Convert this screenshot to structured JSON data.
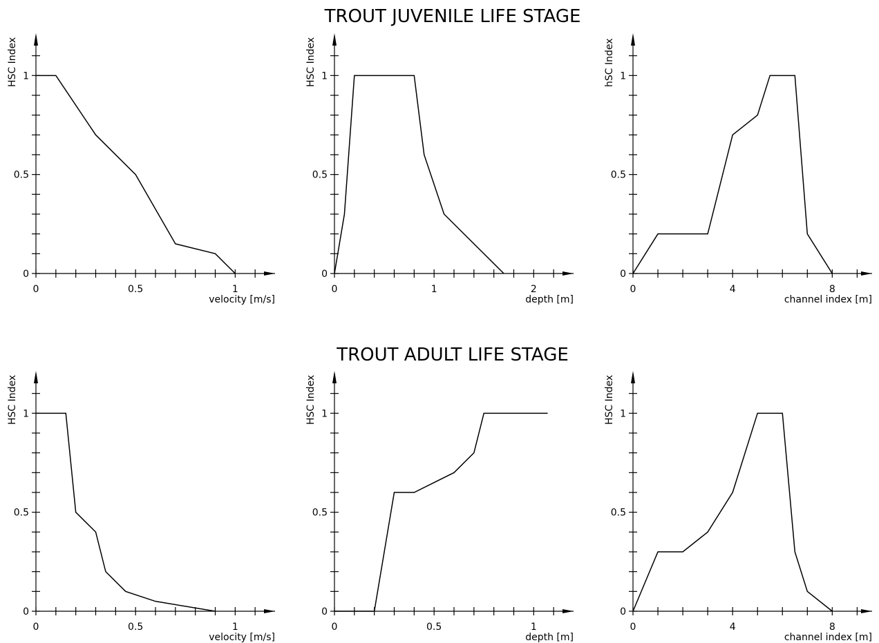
{
  "headings": [
    "TROUT JUVENILE LIFE STAGE",
    "TROUT ADULT LIFE STAGE"
  ],
  "chart_data": [
    {
      "type": "line",
      "color": "#000000",
      "ylabel": "HSC Index",
      "xlabel": "velocity [m/s]",
      "x": [
        0,
        0.1,
        0.3,
        0.5,
        0.7,
        0.9,
        1
      ],
      "values": [
        1,
        1,
        0.7,
        0.5,
        0.15,
        0.1,
        0
      ],
      "xlim": [
        0,
        1.2
      ],
      "ylim": [
        0,
        1.2
      ],
      "xticks": [
        0,
        0.5,
        1
      ],
      "yticks": [
        0,
        0.5,
        1
      ],
      "xminorticks": [
        0,
        0.1,
        0.2,
        0.3,
        0.4,
        0.5,
        0.6,
        0.7,
        0.8,
        0.9,
        1,
        1.1
      ],
      "yminorticks": [
        0,
        0.1,
        0.2,
        0.3,
        0.4,
        0.5,
        0.6,
        0.7,
        0.8,
        0.9,
        1,
        1.1
      ]
    },
    {
      "type": "line",
      "color": "#000000",
      "ylabel": "HSC Index",
      "xlabel": "depth [m]",
      "x": [
        0,
        0.1,
        0.2,
        0.8,
        0.9,
        1.1,
        1.7
      ],
      "values": [
        0,
        0.3,
        1,
        1,
        0.6,
        0.3,
        0
      ],
      "xlim": [
        0,
        2.4
      ],
      "ylim": [
        0,
        1.2
      ],
      "xticks": [
        0,
        1,
        2
      ],
      "yticks": [
        0,
        0.5,
        1
      ],
      "xminorticks": [
        0,
        0.2,
        0.4,
        0.6,
        0.8,
        1,
        1.2,
        1.4,
        1.6,
        1.8,
        2,
        2.2
      ],
      "yminorticks": [
        0,
        0.1,
        0.2,
        0.3,
        0.4,
        0.5,
        0.6,
        0.7,
        0.8,
        0.9,
        1,
        1.1
      ]
    },
    {
      "type": "line",
      "color": "#000000",
      "ylabel": "hSC Index",
      "xlabel": "channel index [m]",
      "x": [
        0,
        1,
        3,
        4,
        5,
        5.5,
        6.5,
        7,
        8
      ],
      "values": [
        0,
        0.2,
        0.2,
        0.7,
        0.8,
        1,
        1,
        0.2,
        0
      ],
      "xlim": [
        0,
        9.6
      ],
      "ylim": [
        0,
        1.2
      ],
      "xticks": [
        0,
        4,
        8
      ],
      "yticks": [
        0,
        0.5,
        1
      ],
      "xminorticks": [
        0,
        1,
        2,
        3,
        4,
        5,
        6,
        7,
        8,
        9
      ],
      "yminorticks": [
        0,
        0.1,
        0.2,
        0.3,
        0.4,
        0.5,
        0.6,
        0.7,
        0.8,
        0.9,
        1,
        1.1
      ]
    },
    {
      "type": "line",
      "color": "#000000",
      "ylabel": "HSC Index",
      "xlabel": "velocity [m/s]",
      "x": [
        0,
        0.15,
        0.17,
        0.2,
        0.3,
        0.35,
        0.45,
        0.6,
        0.9
      ],
      "values": [
        1,
        1,
        0.8,
        0.5,
        0.4,
        0.2,
        0.1,
        0.05,
        0
      ],
      "xlim": [
        0,
        1.2
      ],
      "ylim": [
        0,
        1.2
      ],
      "xticks": [
        0,
        0.5,
        1
      ],
      "yticks": [
        0,
        0.5,
        1
      ],
      "xminorticks": [
        0,
        0.1,
        0.2,
        0.3,
        0.4,
        0.5,
        0.6,
        0.7,
        0.8,
        0.9,
        1,
        1.1
      ],
      "yminorticks": [
        0,
        0.1,
        0.2,
        0.3,
        0.4,
        0.5,
        0.6,
        0.7,
        0.8,
        0.9,
        1,
        1.1
      ]
    },
    {
      "type": "line",
      "color": "#000000",
      "ylabel": "HSC Index",
      "xlabel": "depth [m]",
      "x": [
        0,
        0.2,
        0.3,
        0.4,
        0.6,
        0.7,
        0.75,
        1.07
      ],
      "values": [
        0,
        0,
        0.6,
        0.6,
        0.7,
        0.8,
        1,
        1
      ],
      "xlim": [
        0,
        1.2
      ],
      "ylim": [
        0,
        1.2
      ],
      "xticks": [
        0,
        0.5,
        1
      ],
      "yticks": [
        0,
        0.5,
        1
      ],
      "xminorticks": [
        0,
        0.1,
        0.2,
        0.3,
        0.4,
        0.5,
        0.6,
        0.7,
        0.8,
        0.9,
        1,
        1.1
      ],
      "yminorticks": [
        0,
        0.1,
        0.2,
        0.3,
        0.4,
        0.5,
        0.6,
        0.7,
        0.8,
        0.9,
        1,
        1.1
      ]
    },
    {
      "type": "line",
      "color": "#000000",
      "ylabel": "HSC Index",
      "xlabel": "channel index [m]",
      "x": [
        0,
        1,
        2,
        3,
        4,
        5,
        6,
        6.5,
        7,
        8
      ],
      "values": [
        0,
        0.3,
        0.3,
        0.4,
        0.6,
        1,
        1,
        0.3,
        0.1,
        0
      ],
      "xlim": [
        0,
        9.6
      ],
      "ylim": [
        0,
        1.2
      ],
      "xticks": [
        0,
        4,
        8
      ],
      "yticks": [
        0,
        0.5,
        1
      ],
      "xminorticks": [
        0,
        1,
        2,
        3,
        4,
        5,
        6,
        7,
        8,
        9
      ],
      "yminorticks": [
        0,
        0.1,
        0.2,
        0.3,
        0.4,
        0.5,
        0.6,
        0.7,
        0.8,
        0.9,
        1,
        1.1
      ]
    }
  ]
}
